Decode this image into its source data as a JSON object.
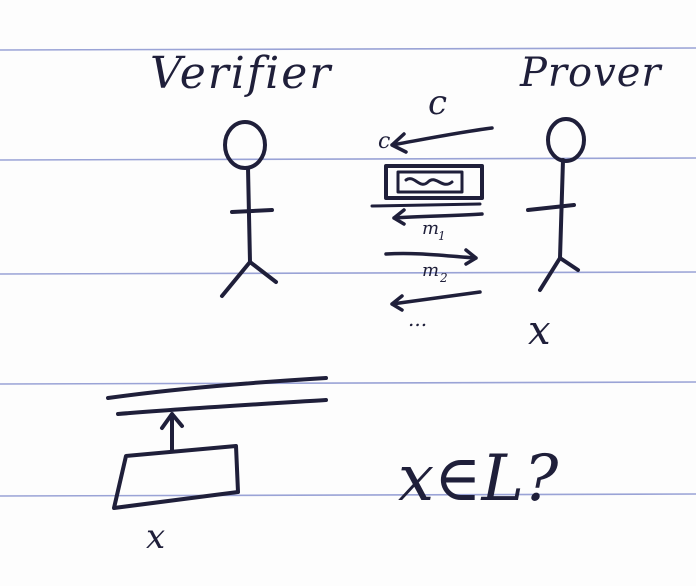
{
  "labels": {
    "verifier": "Verifier",
    "prover": "Prover",
    "challenge": "c",
    "commitment": "c",
    "message_1": "m",
    "message_1_sub": "1",
    "message_2": "m",
    "message_2_sub": "2",
    "ellipsis": "...",
    "prover_input": "x",
    "box_input": "x",
    "question": "x∈L?"
  },
  "colors": {
    "ink": "#1f1f3a",
    "ruled_line": "#9aa3d6",
    "paper": "#fdfdfd"
  }
}
